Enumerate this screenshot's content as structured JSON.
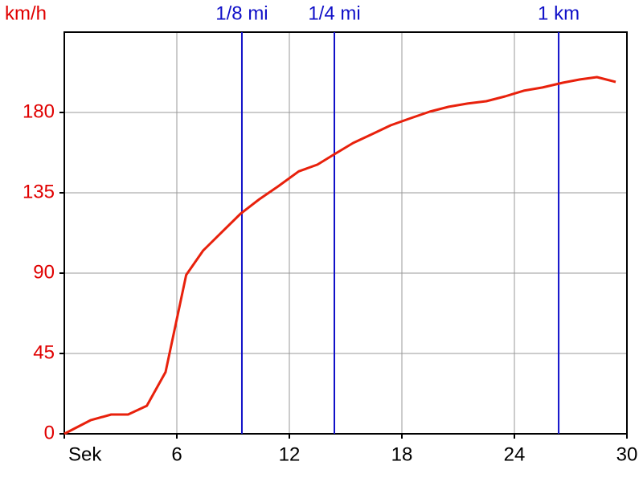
{
  "chart_data": {
    "type": "line",
    "y_label": "km/h",
    "x": [
      0,
      1.4,
      2.5,
      3.4,
      4.4,
      5.4,
      6.5,
      7.4,
      8.4,
      9.4,
      10.4,
      11.4,
      12.5,
      13.5,
      14.4,
      15.4,
      16.5,
      17.4,
      18.5,
      19.5,
      20.5,
      21.5,
      22.5,
      23.5,
      24.5,
      25.5,
      26.6,
      27.5,
      28.4,
      29.4
    ],
    "series": [
      {
        "color": "#e8210c",
        "values": [
          0,
          7.6,
          10.8,
          10.8,
          15.7,
          34.6,
          89,
          102.6,
          113,
          123.3,
          131.4,
          138.6,
          147,
          150.8,
          156.6,
          162.9,
          168.3,
          172.8,
          176.9,
          180.5,
          183.2,
          185,
          186.3,
          189,
          192.2,
          194,
          196.7,
          198.5,
          199.8,
          197.1
        ]
      }
    ],
    "xlim": [
      0,
      30
    ],
    "ylim": [
      0,
      225
    ],
    "xticks": [
      {
        "value": 0,
        "label": "Sek"
      },
      6,
      12,
      18,
      24,
      30
    ],
    "yticks": [
      0,
      45,
      90,
      135,
      180
    ],
    "grid": true,
    "markers": [
      {
        "label": "1/8 mi",
        "x": 9.47
      },
      {
        "label": "1/4 mi",
        "x": 14.4
      },
      {
        "label": "1 km",
        "x": 26.36
      }
    ],
    "marker_color": "#1010c8",
    "axis_label_color": "#e00000"
  }
}
